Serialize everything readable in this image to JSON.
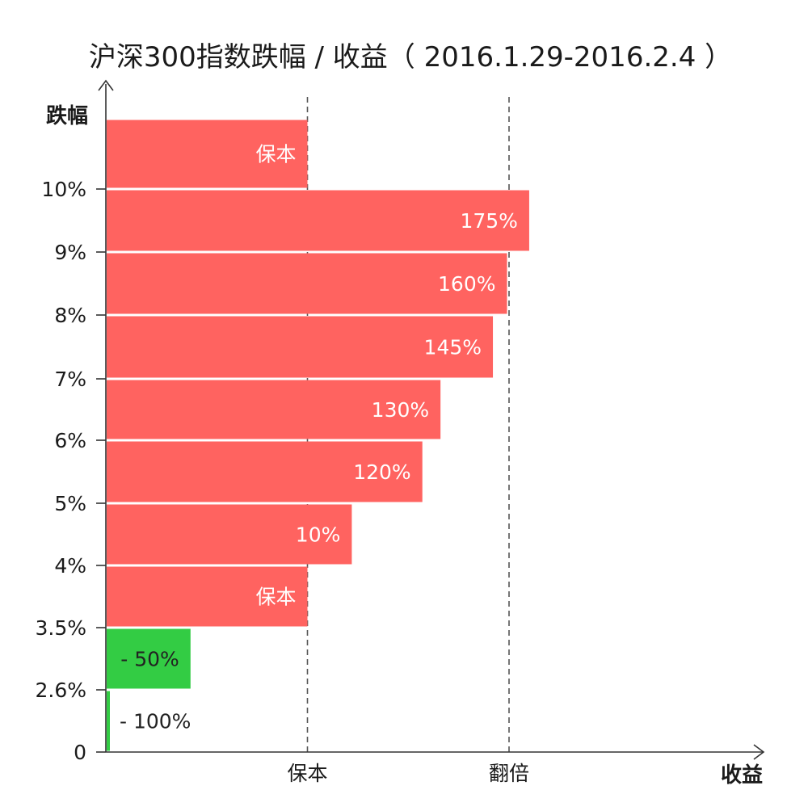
{
  "chart_data": {
    "type": "bar",
    "orientation": "horizontal",
    "title": "沪深300指数跌幅 / 收益（ 2016.1.29-2016.2.4 ）",
    "ylabel": "跌幅",
    "xlabel": "收益",
    "y_ticks": [
      "0",
      "2.6%",
      "3.5%",
      "4%",
      "5%",
      "6%",
      "7%",
      "8%",
      "9%",
      "10%"
    ],
    "x_ref_labels": [
      {
        "label": "保本",
        "value": 100
      },
      {
        "label": "翻倍",
        "value": 200
      }
    ],
    "xlim": [
      0,
      200
    ],
    "grid": false,
    "bars": [
      {
        "range": [
          "0",
          "2.6%"
        ],
        "value": 2,
        "label": "- 100%",
        "color": "#33cc44"
      },
      {
        "range": [
          "2.6%",
          "3.5%"
        ],
        "value": 42,
        "label": "- 50%",
        "color": "#33cc44"
      },
      {
        "range": [
          "3.5%",
          "4%"
        ],
        "value": 100,
        "label": "保本",
        "color": "#ff6360"
      },
      {
        "range": [
          "4%",
          "5%"
        ],
        "value": 122,
        "label": "10%",
        "color": "#ff6360"
      },
      {
        "range": [
          "5%",
          "6%"
        ],
        "value": 157,
        "label": "120%",
        "color": "#ff6360"
      },
      {
        "range": [
          "6%",
          "7%"
        ],
        "value": 166,
        "label": "130%",
        "color": "#ff6360"
      },
      {
        "range": [
          "7%",
          "8%"
        ],
        "value": 192,
        "label": "145%",
        "color": "#ff6360"
      },
      {
        "range": [
          "8%",
          "9%"
        ],
        "value": 199,
        "label": "160%",
        "color": "#ff6360"
      },
      {
        "range": [
          "9%",
          "10%"
        ],
        "value": 210,
        "label": "175%",
        "color": "#ff6360"
      },
      {
        "range": [
          "10%",
          ""
        ],
        "value": 100,
        "label": "保本",
        "color": "#ff6360"
      }
    ]
  }
}
